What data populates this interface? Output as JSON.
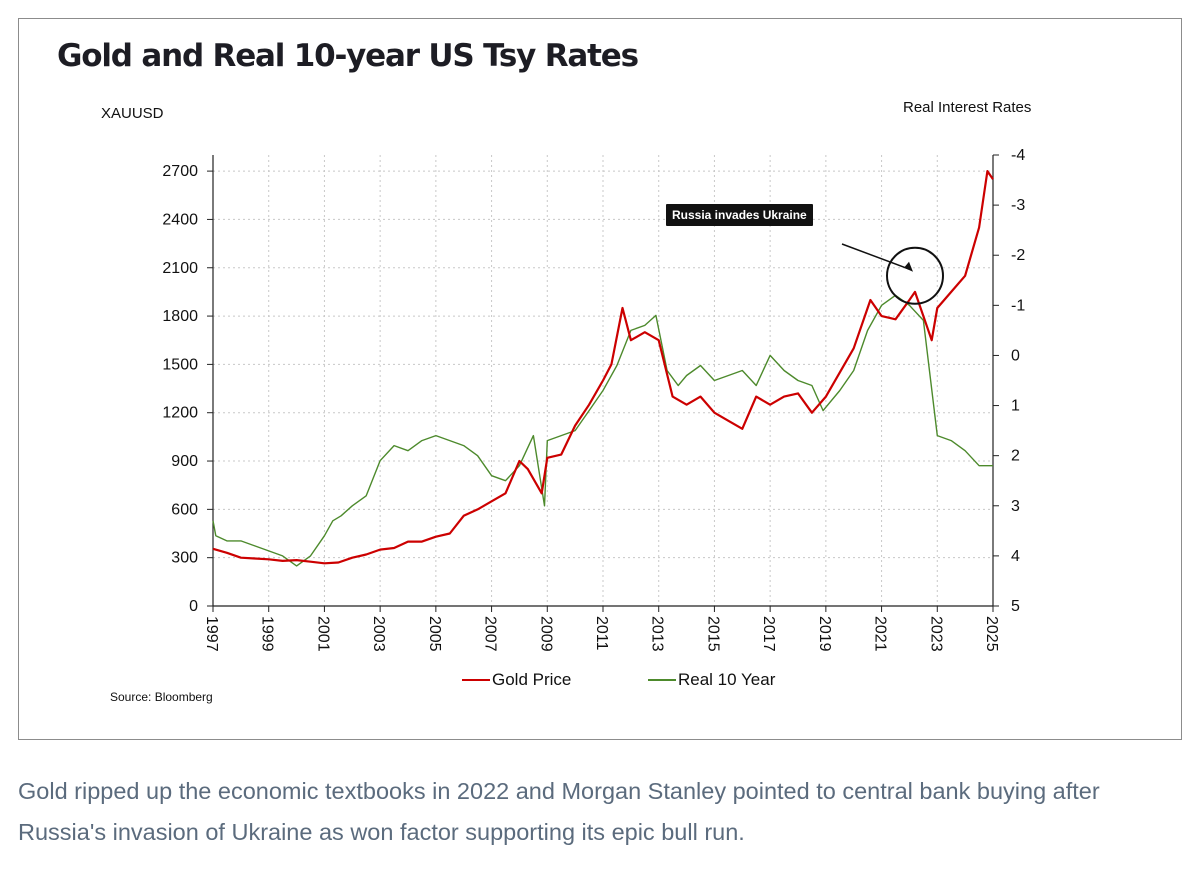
{
  "page": {
    "caption": "Gold ripped up the economic textbooks in 2022 and Morgan Stanley pointed to central bank buying after Russia's invasion of Ukraine as won factor supporting its epic bull run."
  },
  "chart_data": {
    "type": "line",
    "title": "Gold and Real 10-year US Tsy Rates",
    "ylabel_left": "XAUUSD",
    "ylabel_right": "Real Interest Rates",
    "xlim": [
      1997,
      2025
    ],
    "ylim_left": [
      0,
      2800
    ],
    "ylim_right": [
      5,
      -4
    ],
    "right_axis_inverted": true,
    "x_ticks": [
      "1997",
      "1999",
      "2001",
      "2003",
      "2005",
      "2007",
      "2009",
      "2011",
      "2013",
      "2015",
      "2017",
      "2019",
      "2021",
      "2023",
      "2025"
    ],
    "y_ticks_left": [
      0,
      300,
      600,
      900,
      1200,
      1500,
      1800,
      2100,
      2400,
      2700
    ],
    "y_ticks_right": [
      5,
      4,
      3,
      2,
      1,
      0,
      -1,
      -2,
      -3,
      -4
    ],
    "grid": true,
    "legend_position": "bottom",
    "source": "Source: Bloomberg",
    "annotation": {
      "text": "Russia invades Ukraine",
      "x": 2022.2,
      "y": 2050
    },
    "colors": {
      "gold": "#cc0000",
      "real": "#4d8a2c"
    },
    "series": [
      {
        "name": "Gold Price",
        "axis": "left",
        "x": [
          1997,
          1997.5,
          1998,
          1998.5,
          1999,
          1999.5,
          2000,
          2000.5,
          2001,
          2001.5,
          2002,
          2002.5,
          2003,
          2003.5,
          2004,
          2004.5,
          2005,
          2005.5,
          2006,
          2006.5,
          2007,
          2007.5,
          2008,
          2008.3,
          2008.8,
          2009,
          2009.5,
          2010,
          2010.5,
          2011,
          2011.3,
          2011.7,
          2012,
          2012.5,
          2013,
          2013.5,
          2014,
          2014.5,
          2015,
          2015.5,
          2016,
          2016.5,
          2017,
          2017.5,
          2018,
          2018.5,
          2019,
          2019.5,
          2020,
          2020.6,
          2021,
          2021.5,
          2022,
          2022.2,
          2022.8,
          2023,
          2023.5,
          2024,
          2024.5,
          2024.8,
          2025
        ],
        "values": [
          355,
          330,
          300,
          295,
          290,
          280,
          285,
          275,
          265,
          270,
          300,
          320,
          350,
          360,
          400,
          400,
          430,
          450,
          560,
          600,
          650,
          700,
          900,
          850,
          700,
          920,
          940,
          1120,
          1250,
          1400,
          1500,
          1850,
          1650,
          1700,
          1650,
          1300,
          1250,
          1300,
          1200,
          1150,
          1100,
          1300,
          1250,
          1300,
          1320,
          1200,
          1300,
          1450,
          1600,
          1900,
          1800,
          1780,
          1900,
          1950,
          1650,
          1850,
          1950,
          2050,
          2350,
          2700,
          2650
        ]
      },
      {
        "name": "Real 10 Year",
        "axis": "right",
        "x": [
          1997,
          1997.1,
          1997.5,
          1998,
          1998.5,
          1999,
          1999.5,
          2000,
          2000.5,
          2001,
          2001.3,
          2001.6,
          2002,
          2002.5,
          2003,
          2003.5,
          2004,
          2004.5,
          2005,
          2005.5,
          2006,
          2006.5,
          2007,
          2007.5,
          2008,
          2008.5,
          2008.9,
          2009,
          2009.5,
          2010,
          2010.5,
          2011,
          2011.5,
          2012,
          2012.5,
          2012.9,
          2013.3,
          2013.7,
          2014,
          2014.5,
          2015,
          2015.5,
          2016,
          2016.5,
          2017,
          2017.5,
          2018,
          2018.5,
          2018.9,
          2019.5,
          2020,
          2020.5,
          2021,
          2021.5,
          2022,
          2022.5,
          2023,
          2023.5,
          2024,
          2024.5,
          2025
        ],
        "values": [
          3.3,
          3.6,
          3.7,
          3.7,
          3.8,
          3.9,
          4.0,
          4.2,
          4.0,
          3.6,
          3.3,
          3.2,
          3.0,
          2.8,
          2.1,
          1.8,
          1.9,
          1.7,
          1.6,
          1.7,
          1.8,
          2.0,
          2.4,
          2.5,
          2.2,
          1.6,
          3.0,
          1.7,
          1.6,
          1.5,
          1.1,
          0.7,
          0.2,
          -0.5,
          -0.6,
          -0.8,
          0.3,
          0.6,
          0.4,
          0.2,
          0.5,
          0.4,
          0.3,
          0.6,
          0.0,
          0.3,
          0.5,
          0.6,
          1.1,
          0.7,
          0.3,
          -0.5,
          -1.0,
          -1.2,
          -1.0,
          -0.7,
          1.6,
          1.7,
          1.9,
          2.2,
          2.2
        ]
      }
    ]
  }
}
